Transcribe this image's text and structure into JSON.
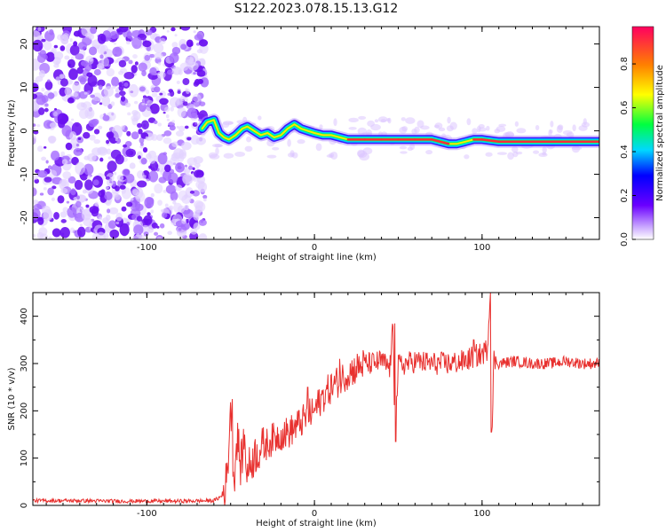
{
  "title": "S122.2023.078.15.13.G12",
  "colors": {
    "background": "#ffffff",
    "axis": "#000000",
    "snr_line": "#e8312f",
    "noise_dot_dark": "#7a1ff0",
    "noise_dot_light": "#d9c2ff"
  },
  "chart_data": [
    {
      "type": "heatmap",
      "xlabel": "Height of straight line (km)",
      "ylabel": "Frequency (Hz)",
      "xlim": [
        -168,
        170
      ],
      "ylim": [
        -25,
        24
      ],
      "x_ticks": [
        -100,
        0,
        100
      ],
      "y_ticks": [
        -20,
        -10,
        0,
        10,
        20
      ],
      "colorbar": {
        "label": "Normalized spectral amplitude",
        "range": [
          0.0,
          0.97
        ],
        "ticks": [
          0.0,
          0.2,
          0.4,
          0.6,
          0.8
        ],
        "colormap": "rainbow"
      },
      "noise_region_x": [
        -168,
        -65
      ],
      "ridge": {
        "x": [
          -67,
          -64,
          -60,
          -57,
          -54,
          -51,
          -47,
          -43,
          -40,
          -36,
          -32,
          -28,
          -24,
          -20,
          -16,
          -12,
          -8,
          -4,
          0,
          5,
          10,
          20,
          30,
          40,
          50,
          60,
          70,
          80,
          85,
          90,
          95,
          100,
          110,
          120,
          130,
          140,
          150,
          160,
          170
        ],
        "frequency": [
          0.5,
          2,
          2.5,
          -0.5,
          -1.5,
          -2,
          -1,
          0.5,
          1,
          0,
          -1,
          -0.5,
          -1.5,
          -1,
          0.5,
          1.5,
          0.5,
          0,
          -0.5,
          -1,
          -1,
          -2,
          -2,
          -2,
          -2,
          -2,
          -2,
          -3,
          -3,
          -2.5,
          -2,
          -2,
          -2.5,
          -2.5,
          -2.5,
          -2.5,
          -2.5,
          -2.5,
          -2.5
        ],
        "amplitude": [
          0.3,
          0.4,
          0.35,
          0.45,
          0.4,
          0.4,
          0.45,
          0.5,
          0.5,
          0.55,
          0.55,
          0.55,
          0.6,
          0.6,
          0.6,
          0.65,
          0.65,
          0.7,
          0.7,
          0.75,
          0.8,
          0.9,
          0.9,
          0.9,
          0.9,
          0.85,
          0.85,
          0.8,
          0.75,
          0.8,
          0.85,
          0.9,
          0.95,
          0.95,
          0.95,
          0.95,
          0.95,
          0.95,
          0.95
        ]
      }
    },
    {
      "type": "line",
      "xlabel": "Height of straight line (km)",
      "ylabel": "SNR (10 * v/v)",
      "xlim": [
        -168,
        170
      ],
      "ylim": [
        0,
        450
      ],
      "x_ticks": [
        -100,
        0,
        100
      ],
      "y_ticks": [
        0,
        100,
        200,
        300,
        400
      ],
      "series": [
        {
          "x": [
            -168,
            -140,
            -120,
            -100,
            -80,
            -60,
            -55,
            -52,
            -50,
            -48,
            -46,
            -44,
            -42,
            -40,
            -38,
            -35,
            -30,
            -25,
            -20,
            -15,
            -10,
            -5,
            0,
            5,
            10,
            15,
            20,
            25,
            30,
            35,
            40,
            45,
            47,
            48,
            50,
            55,
            60,
            70,
            80,
            90,
            95,
            100,
            103,
            105,
            106,
            107,
            110,
            120,
            130,
            140,
            150,
            160,
            170
          ],
          "y": [
            10,
            10,
            9,
            9,
            9,
            10,
            20,
            60,
            220,
            50,
            150,
            80,
            140,
            70,
            90,
            110,
            125,
            140,
            150,
            155,
            170,
            185,
            200,
            230,
            250,
            265,
            280,
            290,
            300,
            300,
            305,
            290,
            380,
            135,
            295,
            300,
            305,
            300,
            300,
            305,
            315,
            320,
            330,
            450,
            155,
            310,
            300,
            305,
            300,
            300,
            305,
            300,
            300
          ]
        }
      ],
      "spikes": [
        {
          "x": -49,
          "y": 225
        },
        {
          "x": -4,
          "y": 250
        },
        {
          "x": 15,
          "y": 310
        },
        {
          "x": 48,
          "y": 385
        },
        {
          "x": 48.5,
          "y": 135
        },
        {
          "x": 95,
          "y": 350
        },
        {
          "x": 105,
          "y": 450
        },
        {
          "x": 105.5,
          "y": 155
        }
      ]
    }
  ]
}
